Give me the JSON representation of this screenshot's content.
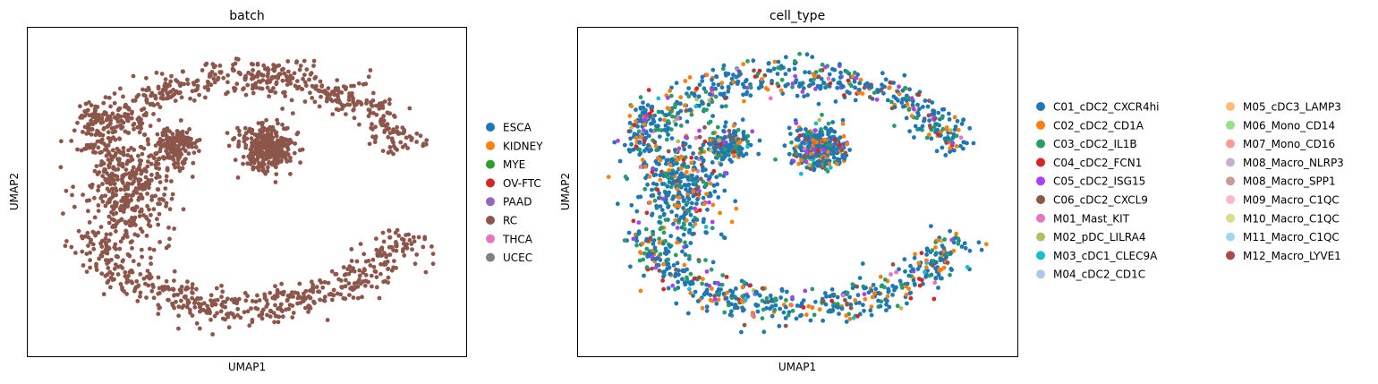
{
  "chart_data": [
    {
      "type": "scatter",
      "title": "batch",
      "xlabel": "UMAP1",
      "ylabel": "UMAP2",
      "grid": false,
      "legend_placement": "right",
      "legend_columns": 1,
      "legend": [
        {
          "name": "ESCA",
          "color": "#1f77b4"
        },
        {
          "name": "KIDNEY",
          "color": "#ff7f0e"
        },
        {
          "name": "MYE",
          "color": "#2ca02c"
        },
        {
          "name": "OV-FTC",
          "color": "#d62728"
        },
        {
          "name": "PAAD",
          "color": "#9467bd"
        },
        {
          "name": "RC",
          "color": "#8c564b"
        },
        {
          "name": "THCA",
          "color": "#e377c2"
        },
        {
          "name": "UCEC",
          "color": "#7f7f7f"
        }
      ],
      "point_color": "#8c564b",
      "clusters": [
        {
          "shape": "arc",
          "cx": 0.5,
          "cy": 0.5,
          "rx": 0.42,
          "ry": 0.4,
          "thickness": 0.07,
          "from_deg": 200,
          "to_deg": 340,
          "n": 520
        },
        {
          "shape": "arc",
          "cx": 0.5,
          "cy": 0.5,
          "rx": 0.42,
          "ry": 0.4,
          "thickness": 0.07,
          "from_deg": 20,
          "to_deg": 160,
          "n": 520
        },
        {
          "shape": "blob",
          "cx": 0.21,
          "cy": 0.48,
          "rx": 0.13,
          "ry": 0.26,
          "n": 420
        },
        {
          "shape": "blob",
          "cx": 0.33,
          "cy": 0.34,
          "rx": 0.06,
          "ry": 0.07,
          "n": 160
        },
        {
          "shape": "blob",
          "cx": 0.55,
          "cy": 0.35,
          "rx": 0.08,
          "ry": 0.09,
          "n": 320
        },
        {
          "shape": "blob",
          "cx": 0.12,
          "cy": 0.24,
          "rx": 0.06,
          "ry": 0.06,
          "n": 50
        }
      ]
    },
    {
      "type": "scatter",
      "title": "cell_type",
      "xlabel": "UMAP1",
      "ylabel": "UMAP2",
      "grid": false,
      "legend_placement": "right",
      "legend_columns": 2,
      "legend": [
        {
          "name": "C01_cDC2_CXCR4hi",
          "color": "#1f77b4"
        },
        {
          "name": "C02_cDC2_CD1A",
          "color": "#ff7f0e"
        },
        {
          "name": "C03_cDC2_IL1B",
          "color": "#279e68"
        },
        {
          "name": "C04_cDC2_FCN1",
          "color": "#d62728"
        },
        {
          "name": "C05_cDC2_ISG15",
          "color": "#aa40fc"
        },
        {
          "name": "C06_cDC2_CXCL9",
          "color": "#8c564b"
        },
        {
          "name": "M01_Mast_KIT",
          "color": "#e377c2"
        },
        {
          "name": "M02_pDC_LILRA4",
          "color": "#b5bd61"
        },
        {
          "name": "M03_cDC1_CLEC9A",
          "color": "#17becf"
        },
        {
          "name": "M04_cDC2_CD1C",
          "color": "#aec7e8"
        },
        {
          "name": "M05_cDC3_LAMP3",
          "color": "#ffbb78"
        },
        {
          "name": "M06_Mono_CD14",
          "color": "#98df8a"
        },
        {
          "name": "M07_Mono_CD16",
          "color": "#ff9896"
        },
        {
          "name": "M08_Macro_NLRP3",
          "color": "#c5b0d5"
        },
        {
          "name": "M08_Macro_SPP1",
          "color": "#c49c94"
        },
        {
          "name": "M09_Macro_C1QC",
          "color": "#f7b6d2"
        },
        {
          "name": "M10_Macro_C1QC",
          "color": "#dbdb8d"
        },
        {
          "name": "M11_Macro_C1QC",
          "color": "#9edae5"
        },
        {
          "name": "M12_Macro_LYVE1",
          "color": "#ad494a"
        }
      ],
      "mix_weights": [
        0.55,
        0.12,
        0.16,
        0.05,
        0.05,
        0.04,
        0.01,
        0.01,
        0.01
      ],
      "clusters": [
        {
          "shape": "arc",
          "cx": 0.5,
          "cy": 0.5,
          "rx": 0.42,
          "ry": 0.4,
          "thickness": 0.07,
          "from_deg": 200,
          "to_deg": 340,
          "n": 520
        },
        {
          "shape": "arc",
          "cx": 0.5,
          "cy": 0.5,
          "rx": 0.42,
          "ry": 0.4,
          "thickness": 0.07,
          "from_deg": 20,
          "to_deg": 160,
          "n": 520
        },
        {
          "shape": "blob",
          "cx": 0.21,
          "cy": 0.48,
          "rx": 0.13,
          "ry": 0.26,
          "n": 420
        },
        {
          "shape": "blob",
          "cx": 0.33,
          "cy": 0.34,
          "rx": 0.06,
          "ry": 0.07,
          "n": 160
        },
        {
          "shape": "blob",
          "cx": 0.55,
          "cy": 0.35,
          "rx": 0.08,
          "ry": 0.09,
          "n": 320
        },
        {
          "shape": "blob",
          "cx": 0.12,
          "cy": 0.24,
          "rx": 0.06,
          "ry": 0.06,
          "n": 50
        }
      ]
    }
  ]
}
